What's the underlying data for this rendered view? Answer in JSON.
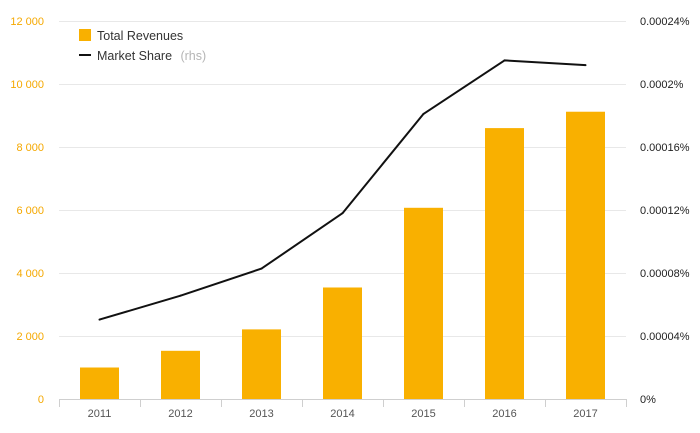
{
  "chart_data": {
    "type": "bar",
    "categories": [
      "2011",
      "2012",
      "2013",
      "2014",
      "2015",
      "2016",
      "2017"
    ],
    "series": [
      {
        "name": "Total Revenues",
        "type": "bar",
        "axis": "left",
        "color": "#f9b000",
        "values": [
          1000,
          1530,
          2210,
          3540,
          6070,
          8600,
          9120
        ]
      },
      {
        "name": "Market Share",
        "legend_note": "(rhs)",
        "type": "line",
        "axis": "right",
        "color": "#111111",
        "values": [
          5.04e-05,
          6.56e-05,
          8.28e-05,
          0.000118,
          0.000181,
          0.000215,
          0.000212
        ]
      }
    ],
    "y_left": {
      "ylim": [
        0,
        12000
      ],
      "ticks": [
        0,
        2000,
        4000,
        6000,
        8000,
        10000,
        12000
      ],
      "tick_labels": [
        "0",
        "2 000",
        "4 000",
        "6 000",
        "8 000",
        "10 000",
        "12 000"
      ],
      "tick_color": "#f5a800"
    },
    "y_right": {
      "ylim": [
        0,
        0.00024
      ],
      "ticks": [
        0,
        4e-05,
        8e-05,
        0.00012,
        0.00016,
        0.0002,
        0.00024
      ],
      "tick_labels": [
        "0%",
        "0.00004%",
        "0.00008%",
        "0.00012%",
        "0.00016%",
        "0.0002%",
        "0.00024%"
      ]
    },
    "grid": true,
    "legend": "top-left",
    "xlabel": "",
    "ylabel": ""
  }
}
